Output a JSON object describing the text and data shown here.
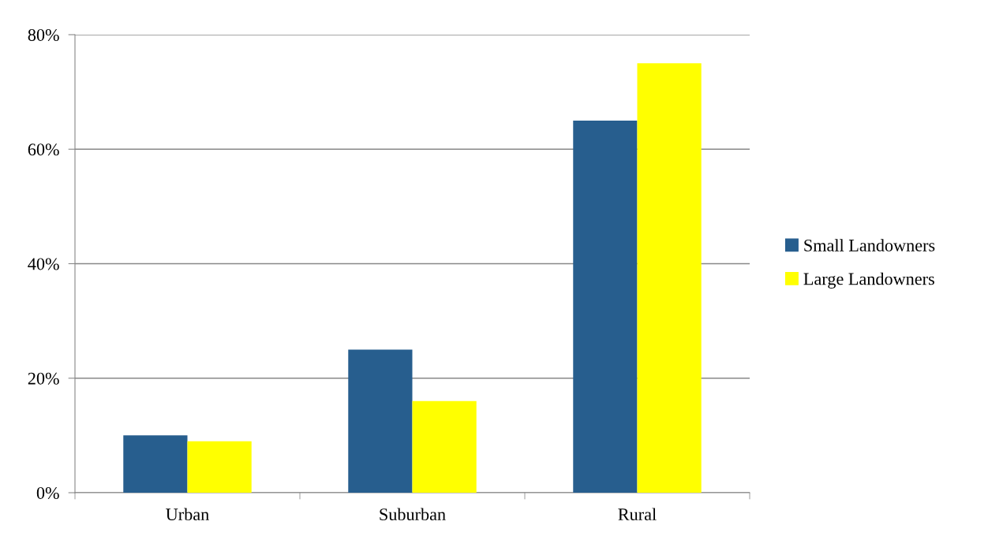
{
  "chart_data": {
    "type": "bar",
    "categories": [
      "Urban",
      "Suburban",
      "Rural"
    ],
    "series": [
      {
        "name": "Small Landowners",
        "color": "#275e8e",
        "values": [
          10,
          25,
          65
        ]
      },
      {
        "name": "Large Landowners",
        "color": "#ffff00",
        "values": [
          9,
          16,
          75
        ]
      }
    ],
    "ylim": [
      0,
      80
    ],
    "yticks": [
      {
        "value": 0,
        "label": "0%"
      },
      {
        "value": 20,
        "label": "20%"
      },
      {
        "value": 40,
        "label": "40%"
      },
      {
        "value": 60,
        "label": "60%"
      },
      {
        "value": 80,
        "label": "80%"
      }
    ],
    "grid": "y",
    "legend": "right"
  }
}
